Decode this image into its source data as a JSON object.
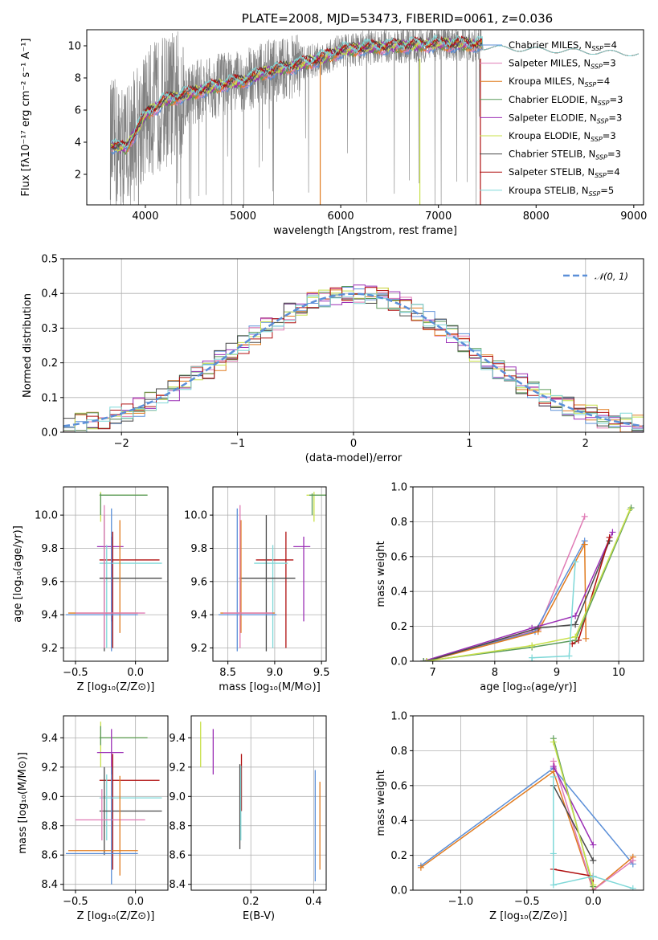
{
  "colors": {
    "Chabrier MILES": "#5b8fd8",
    "Salpeter MILES": "#e07bb5",
    "Kroupa MILES": "#e07b1f",
    "Chabrier ELODIE": "#5a9a5a",
    "Salpeter ELODIE": "#9b2fb5",
    "Kroupa ELODIE": "#c8e04a",
    "Chabrier STELIB": "#4a4a4a",
    "Salpeter STELIB": "#b01010",
    "Kroupa STELIB": "#7fd8d8",
    "data": "#808080",
    "gauss": "#5b8fd8"
  },
  "chart_data": [
    {
      "type": "line",
      "title": "PLATE=2008, MJD=53473, FIBERID=0061, z=0.036",
      "xlabel": "wavelength [Angstrom, rest frame]",
      "ylabel": "Flux [fλ10⁻¹⁷ erg cm⁻² s⁻¹ A⁻¹]",
      "xlim": [
        3400,
        9100
      ],
      "ylim": [
        0.1,
        11
      ],
      "xticks": [
        "4000",
        "5000",
        "6000",
        "7000",
        "8000",
        "9000"
      ],
      "yticks": [
        "2",
        "4",
        "6",
        "8",
        "10"
      ],
      "legend_position": "top-right",
      "legend": [
        {
          "name": "Chabrier MILES",
          "nssp": "4"
        },
        {
          "name": "Salpeter MILES",
          "nssp": "3"
        },
        {
          "name": "Kroupa MILES",
          "nssp": "4"
        },
        {
          "name": "Chabrier ELODIE",
          "nssp": "3"
        },
        {
          "name": "Salpeter ELODIE",
          "nssp": "3"
        },
        {
          "name": "Kroupa ELODIE",
          "nssp": "3"
        },
        {
          "name": "Chabrier STELIB",
          "nssp": "3"
        },
        {
          "name": "Salpeter STELIB",
          "nssp": "4"
        },
        {
          "name": "Kroupa STELIB",
          "nssp": "5"
        }
      ],
      "model_curve": {
        "x": [
          3650,
          3800,
          4000,
          4200,
          4500,
          4800,
          5000,
          5200,
          5500,
          5800,
          6000,
          6300,
          6600,
          7000,
          7400,
          7800,
          8200,
          8600,
          9000
        ],
        "y": [
          3.8,
          3.6,
          5.7,
          6.6,
          7.1,
          7.6,
          7.8,
          8.3,
          8.7,
          9.2,
          9.7,
          9.9,
          10.0,
          10.1,
          10.1,
          10.1,
          9.9,
          9.7,
          9.5
        ]
      },
      "data_range": [
        3640,
        7440
      ]
    },
    {
      "type": "histogram",
      "xlabel": "(data-model)/error",
      "ylabel": "Normed distribution",
      "xlim": [
        -2.5,
        2.5
      ],
      "ylim": [
        0.0,
        0.5
      ],
      "xticks": [
        "−2",
        "−1",
        "0",
        "1",
        "2"
      ],
      "yticks": [
        "0.0",
        "0.1",
        "0.2",
        "0.3",
        "0.4",
        "0.5"
      ],
      "legend": "𝒩(0, 1)",
      "legend_position": "top-right",
      "grid": true
    },
    {
      "type": "errorbar",
      "xlabel": "Z [log₁₀(Z/Z⊙)]",
      "ylabel": "age  [log₁₀(age/yr)]",
      "xlim": [
        -0.6,
        0.27
      ],
      "ylim": [
        9.12,
        10.17
      ],
      "xticks": [
        "−0.5",
        "0.0"
      ],
      "yticks": [
        "9.2",
        "9.4",
        "9.6",
        "9.8",
        "10.0"
      ],
      "grid": true
    },
    {
      "type": "errorbar",
      "xlabel": "mass [log₁₀(M/M⊙)]",
      "ylabel": "",
      "xlim": [
        8.34,
        9.55
      ],
      "ylim": [
        9.12,
        10.17
      ],
      "xticks": [
        "8.5",
        "9.0",
        "9.5"
      ],
      "yticks": [
        "9.2",
        "9.4",
        "9.6",
        "9.8",
        "10.0"
      ],
      "grid": true
    },
    {
      "type": "line",
      "xlabel": "age  [log₁₀(age/yr)]",
      "ylabel": "mass weight",
      "xlim": [
        6.68,
        10.4
      ],
      "ylim": [
        0.0,
        1.0
      ],
      "xticks": [
        "7",
        "8",
        "9",
        "10"
      ],
      "yticks": [
        "0.0",
        "0.2",
        "0.4",
        "0.6",
        "0.8",
        "1.0"
      ],
      "grid": true
    },
    {
      "type": "errorbar",
      "xlabel": "Z [log₁₀(Z/Z⊙)]",
      "ylabel": "mass [log₁₀(M/M⊙)]",
      "xlim": [
        -0.6,
        0.27
      ],
      "ylim": [
        8.36,
        9.55
      ],
      "xticks": [
        "−0.5",
        "0.0"
      ],
      "yticks": [
        "8.4",
        "8.6",
        "8.8",
        "9.0",
        "9.2",
        "9.4"
      ],
      "grid": true
    },
    {
      "type": "errorbar",
      "xlabel": "E(B-V)",
      "ylabel": "",
      "xlim": [
        0.01,
        0.44
      ],
      "ylim": [
        8.36,
        9.55
      ],
      "xticks": [
        "0.2",
        "0.4"
      ],
      "yticks": [
        "8.4",
        "8.6",
        "8.8",
        "9.0",
        "9.2",
        "9.4"
      ],
      "grid": true
    },
    {
      "type": "line",
      "xlabel": "Z [log₁₀(Z/Z⊙)]",
      "ylabel": "mass weight",
      "xlim": [
        -1.36,
        0.38
      ],
      "ylim": [
        0.0,
        1.0
      ],
      "xticks": [
        "−1.0",
        "−0.5",
        "0.0"
      ],
      "yticks": [
        "0.0",
        "0.2",
        "0.4",
        "0.6",
        "0.8",
        "1.0"
      ],
      "grid": true
    }
  ]
}
